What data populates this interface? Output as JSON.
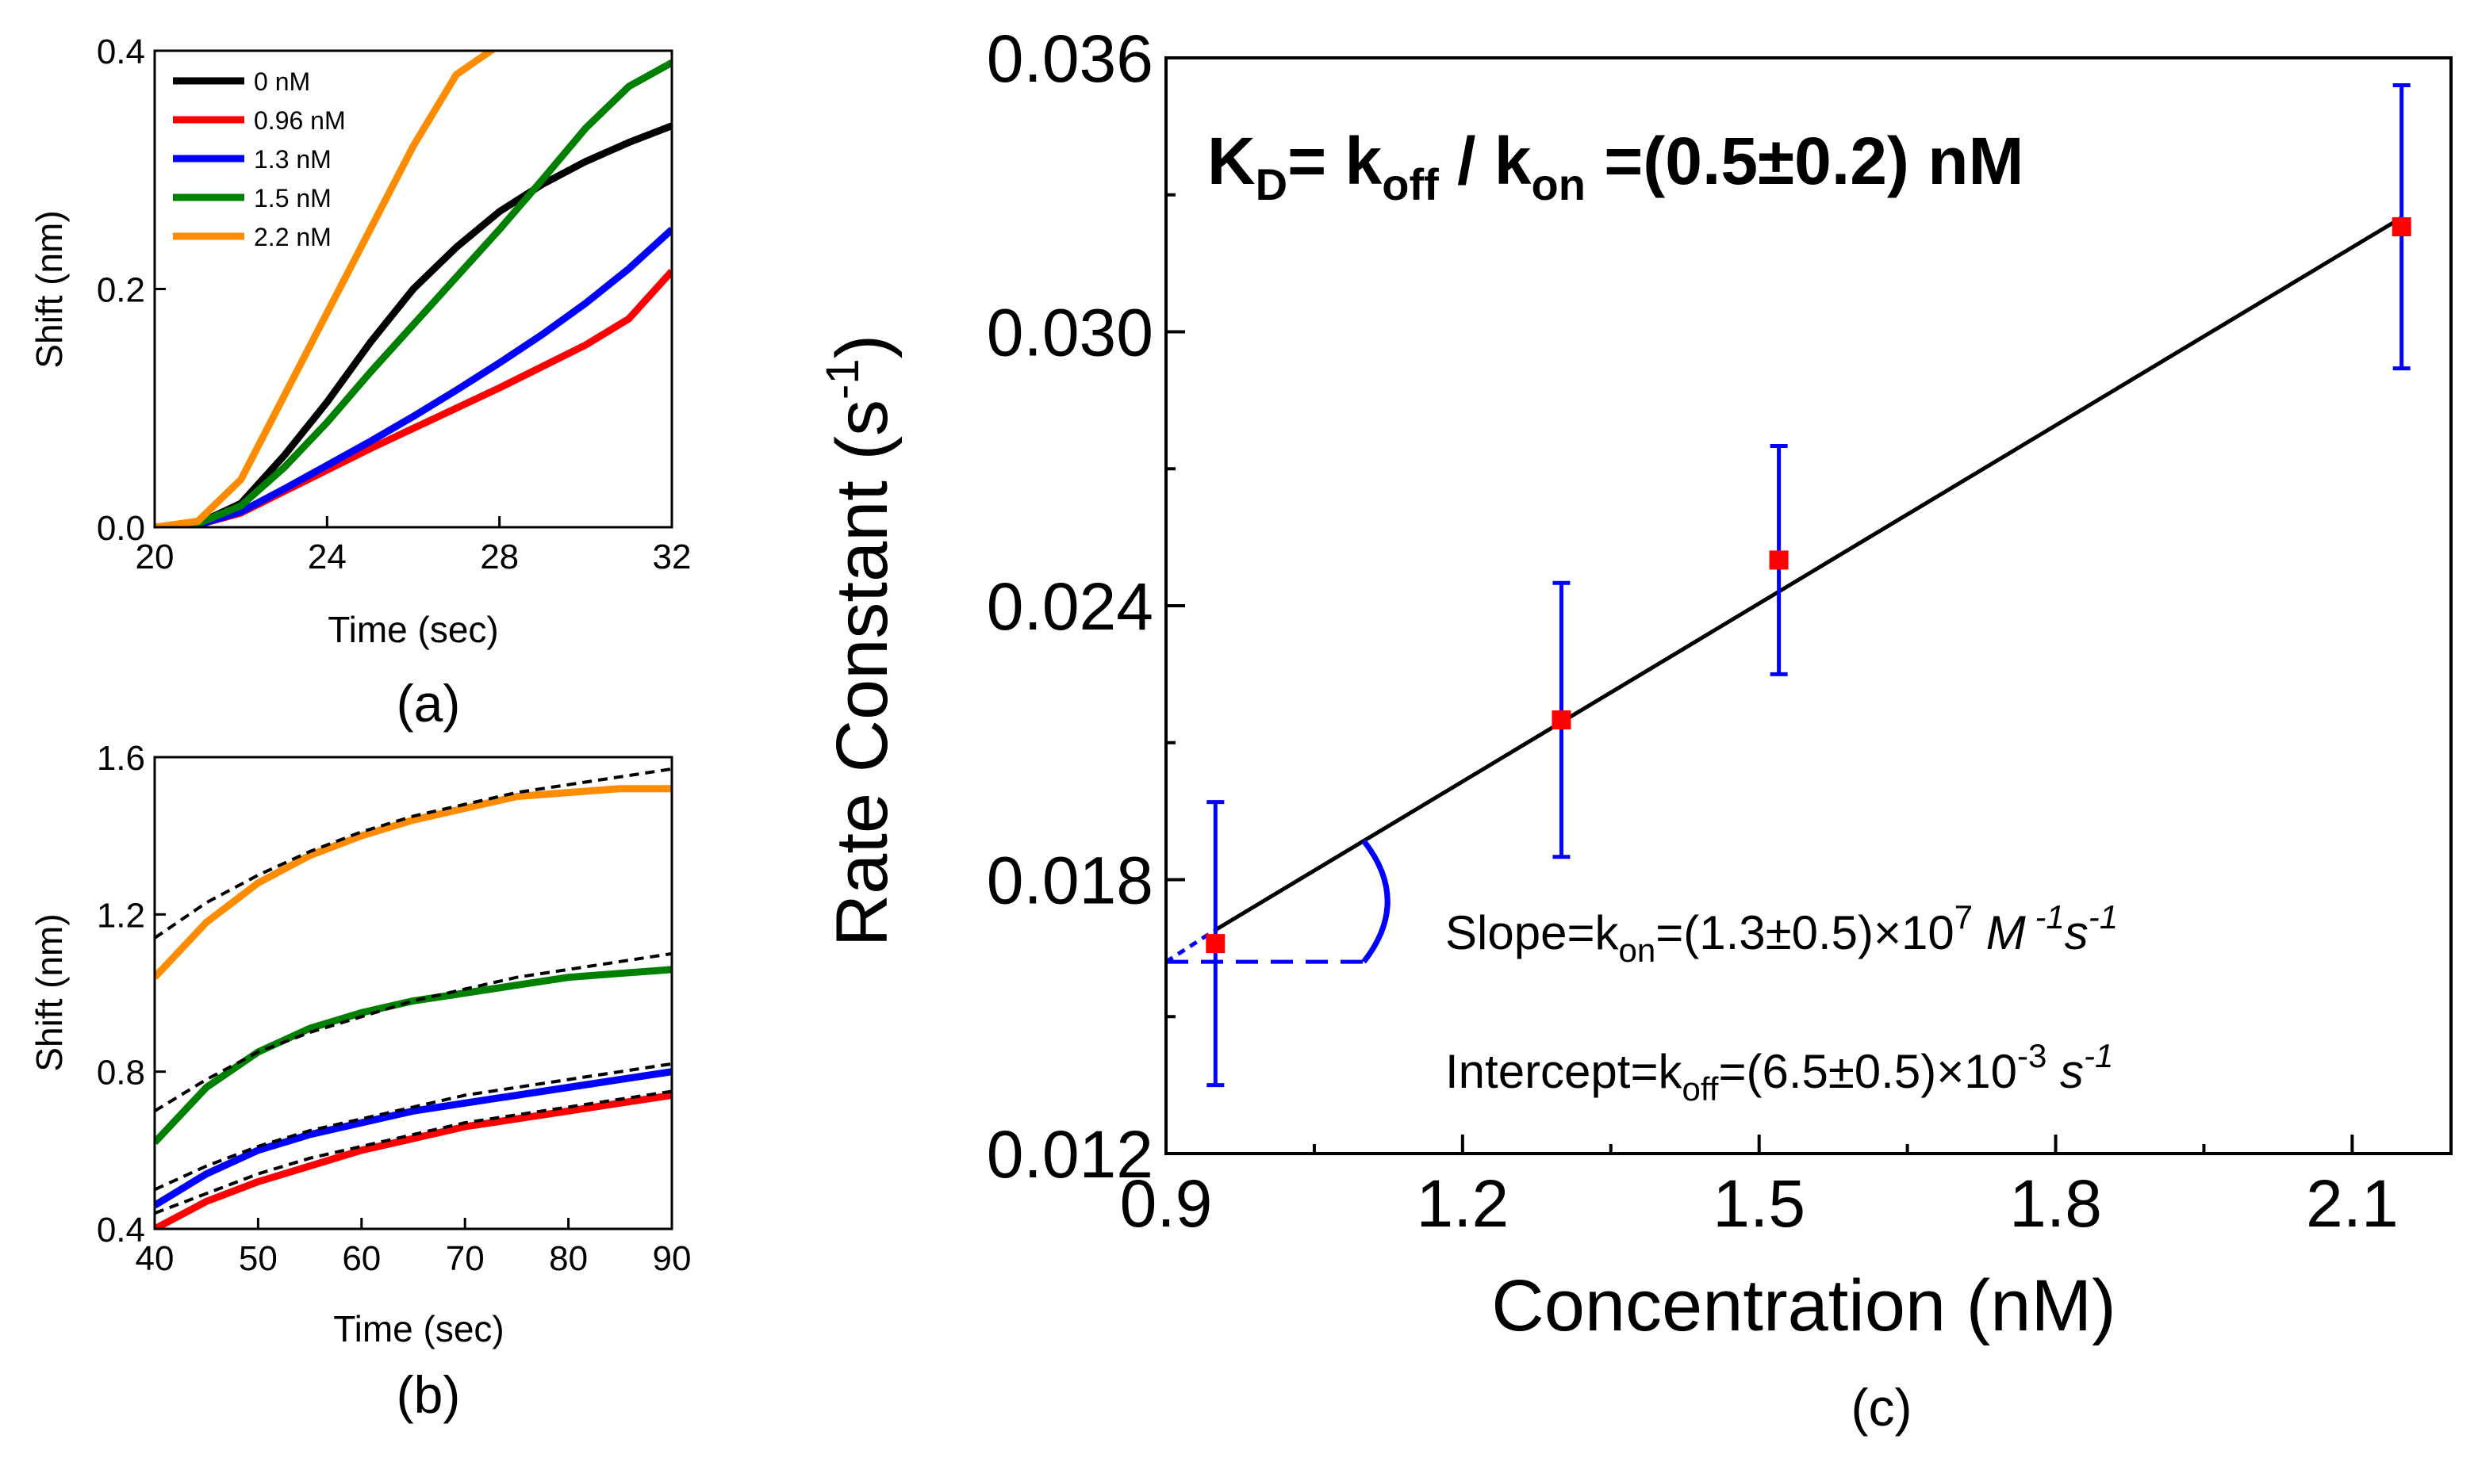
{
  "chart_data": [
    {
      "panel": "a",
      "panel_label": "(a)",
      "type": "line",
      "xlabel": "Time (sec)",
      "ylabel": "Shift (nm)",
      "xlim": [
        20,
        32
      ],
      "ylim": [
        0.0,
        0.4
      ],
      "xticks": [
        "20",
        "24",
        "28",
        "32"
      ],
      "yticks": [
        "0.0",
        "0.2",
        "0.4"
      ],
      "legend_position": "top-left",
      "series": [
        {
          "name": "0 nM",
          "color": "#000000",
          "x": [
            20,
            21,
            22,
            23,
            24,
            25,
            26,
            27,
            28,
            29,
            30,
            31,
            32
          ],
          "values": [
            0.0,
            0.003,
            0.02,
            0.06,
            0.105,
            0.155,
            0.2,
            0.235,
            0.265,
            0.288,
            0.307,
            0.323,
            0.337
          ]
        },
        {
          "name": "0.96 nM",
          "color": "#ff0000",
          "x": [
            20,
            21,
            22,
            23,
            24,
            25,
            26,
            27,
            28,
            29,
            30,
            31,
            32
          ],
          "values": [
            0.0,
            0.002,
            0.012,
            0.03,
            0.048,
            0.066,
            0.083,
            0.1,
            0.117,
            0.135,
            0.153,
            0.175,
            0.215
          ]
        },
        {
          "name": "1.3 nM",
          "color": "#0000ff",
          "x": [
            20,
            21,
            22,
            23,
            24,
            25,
            26,
            27,
            28,
            29,
            30,
            31,
            32
          ],
          "values": [
            0.0,
            0.002,
            0.013,
            0.032,
            0.052,
            0.072,
            0.093,
            0.115,
            0.138,
            0.162,
            0.188,
            0.217,
            0.25
          ]
        },
        {
          "name": "1.5 nM",
          "color": "#008000",
          "x": [
            20,
            21,
            22,
            23,
            24,
            25,
            26,
            27,
            28,
            29,
            30,
            31,
            32
          ],
          "values": [
            0.0,
            0.003,
            0.018,
            0.05,
            0.088,
            0.13,
            0.17,
            0.21,
            0.25,
            0.292,
            0.335,
            0.37,
            0.39
          ]
        },
        {
          "name": "2.2 nM",
          "color": "#ff8c00",
          "x": [
            20,
            21,
            22,
            23,
            24,
            25,
            26,
            27,
            28
          ],
          "values": [
            0.0,
            0.005,
            0.04,
            0.11,
            0.18,
            0.25,
            0.32,
            0.38,
            0.405
          ]
        }
      ]
    },
    {
      "panel": "b",
      "panel_label": "(b)",
      "type": "line",
      "xlabel": "Time (sec)",
      "ylabel": "Shift (nm)",
      "xlim": [
        40,
        90
      ],
      "ylim": [
        0.4,
        1.6
      ],
      "xticks": [
        "40",
        "50",
        "60",
        "70",
        "80",
        "90"
      ],
      "yticks": [
        "0.4",
        "0.8",
        "1.2",
        "1.6"
      ],
      "series": [
        {
          "name": "2.2 nM",
          "color": "#ff8c00",
          "x": [
            40,
            45,
            50,
            55,
            60,
            65,
            70,
            75,
            80,
            85,
            90
          ],
          "values": [
            1.04,
            1.18,
            1.28,
            1.35,
            1.4,
            1.44,
            1.47,
            1.5,
            1.51,
            1.52,
            1.52
          ]
        },
        {
          "name": "1.5 nM",
          "color": "#008000",
          "x": [
            40,
            45,
            50,
            55,
            60,
            65,
            70,
            75,
            80,
            85,
            90
          ],
          "values": [
            0.62,
            0.76,
            0.85,
            0.91,
            0.95,
            0.98,
            1.0,
            1.02,
            1.04,
            1.05,
            1.06
          ]
        },
        {
          "name": "1.3 nM",
          "color": "#0000ff",
          "x": [
            40,
            45,
            50,
            55,
            60,
            65,
            70,
            75,
            80,
            85,
            90
          ],
          "values": [
            0.46,
            0.54,
            0.6,
            0.64,
            0.67,
            0.7,
            0.72,
            0.74,
            0.76,
            0.78,
            0.8
          ]
        },
        {
          "name": "0.96 nM",
          "color": "#ff0000",
          "x": [
            40,
            45,
            50,
            55,
            60,
            65,
            70,
            75,
            80,
            85,
            90
          ],
          "values": [
            0.4,
            0.47,
            0.52,
            0.56,
            0.6,
            0.63,
            0.66,
            0.68,
            0.7,
            0.72,
            0.74
          ]
        }
      ],
      "fits": [
        {
          "name": "fit 2.2 nM",
          "color": "#000000",
          "x": [
            40,
            45,
            50,
            55,
            60,
            65,
            70,
            75,
            80,
            85,
            90
          ],
          "values": [
            1.14,
            1.23,
            1.3,
            1.36,
            1.41,
            1.45,
            1.48,
            1.51,
            1.53,
            1.55,
            1.57
          ]
        },
        {
          "name": "fit 1.5 nM",
          "color": "#000000",
          "x": [
            40,
            45,
            50,
            55,
            60,
            65,
            70,
            75,
            80,
            85,
            90
          ],
          "values": [
            0.7,
            0.78,
            0.85,
            0.9,
            0.94,
            0.98,
            1.01,
            1.04,
            1.06,
            1.08,
            1.1
          ]
        },
        {
          "name": "fit 1.3 nM",
          "color": "#000000",
          "x": [
            40,
            45,
            50,
            55,
            60,
            65,
            70,
            75,
            80,
            85,
            90
          ],
          "values": [
            0.5,
            0.56,
            0.61,
            0.65,
            0.68,
            0.71,
            0.74,
            0.76,
            0.78,
            0.8,
            0.82
          ]
        },
        {
          "name": "fit 0.96 nM",
          "color": "#000000",
          "x": [
            40,
            45,
            50,
            55,
            60,
            65,
            70,
            75,
            80,
            85,
            90
          ],
          "values": [
            0.44,
            0.49,
            0.54,
            0.58,
            0.61,
            0.64,
            0.67,
            0.69,
            0.71,
            0.73,
            0.75
          ]
        }
      ]
    },
    {
      "panel": "c",
      "panel_label": "(c)",
      "type": "scatter",
      "xlabel": "Concentration (nM)",
      "ylabel": "Rate Constant (s⁻¹)",
      "xlim": [
        0.9,
        2.2
      ],
      "ylim": [
        0.012,
        0.036
      ],
      "xticks": [
        "0.9",
        "1.2",
        "1.5",
        "1.8",
        "2.1"
      ],
      "yticks": [
        "0.012",
        "0.018",
        "0.024",
        "0.030",
        "0.036"
      ],
      "marker_color": "#ff0000",
      "errorbar_color": "#0000ff",
      "points": [
        {
          "x": 0.95,
          "y": 0.0166,
          "err": 0.0031
        },
        {
          "x": 1.3,
          "y": 0.0215,
          "err": 0.003
        },
        {
          "x": 1.52,
          "y": 0.025,
          "err": 0.0025
        },
        {
          "x": 2.15,
          "y": 0.0323,
          "err": 0.0031
        }
      ],
      "fit_line": {
        "x": [
          0.95,
          2.15
        ],
        "y": [
          0.0169,
          0.0325
        ],
        "color": "#000000"
      },
      "extrapolation": {
        "x": [
          0.9,
          0.95
        ],
        "y": [
          0.0162,
          0.0169
        ],
        "intercept_y": 0.0162,
        "color": "#0000ff"
      },
      "annotations": {
        "kd": {
          "k": "K",
          "d_sub": "D",
          "eq1": "= k",
          "off_sub": "off",
          "slash": " / k",
          "on_sub": "on",
          "value": " =(0.5±0.2) nM"
        },
        "slope": {
          "pre": "Slope=k",
          "sub": "on",
          "mid": "=(1.3±0.5)×10",
          "exp": "7",
          "unit_m": " M",
          "m_exp": " -1",
          "unit_s": "s",
          "s_exp": "-1"
        },
        "intercept": {
          "pre": "Intercept=k",
          "sub": "off",
          "mid": "=(6.5±0.5)×10",
          "exp": "-3",
          "unit_s": " s",
          "s_exp": "-1"
        }
      }
    }
  ]
}
